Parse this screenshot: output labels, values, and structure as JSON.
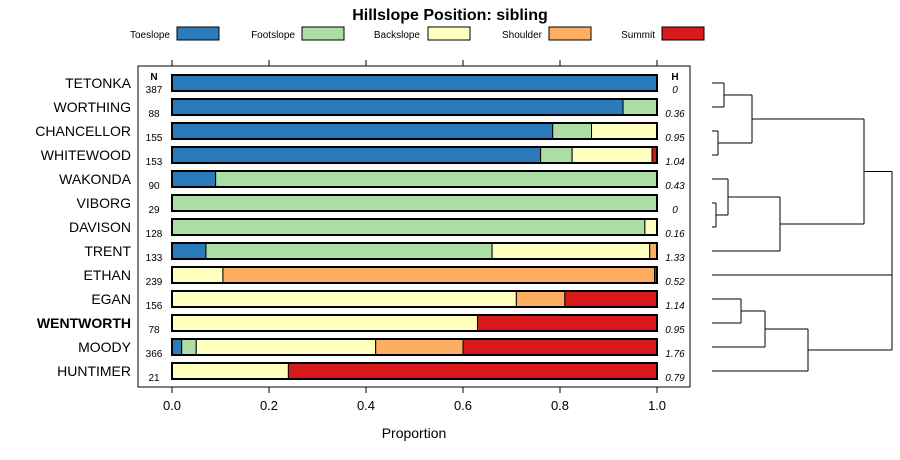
{
  "chart_data": {
    "type": "bar",
    "orientation": "horizontal",
    "stacked": true,
    "title": "Hillslope Position: sibling",
    "xlabel": "Proportion",
    "ylabel": "",
    "xlim": [
      0,
      1
    ],
    "xticks": [
      "0.0",
      "0.2",
      "0.4",
      "0.6",
      "0.8",
      "1.0"
    ],
    "n_header": "N",
    "h_header": "H",
    "series_names": [
      "Toeslope",
      "Footslope",
      "Backslope",
      "Shoulder",
      "Summit"
    ],
    "colors": [
      "#2b7bba",
      "#abdda4",
      "#ffffbf",
      "#fdae61",
      "#d7191c"
    ],
    "bold_category": "WENTWORTH",
    "categories": [
      "TETONKA",
      "WORTHING",
      "CHANCELLOR",
      "WHITEWOOD",
      "WAKONDA",
      "VIBORG",
      "DAVISON",
      "TRENT",
      "ETHAN",
      "EGAN",
      "WENTWORTH",
      "MOODY",
      "HUNTIMER"
    ],
    "n": [
      "387",
      "88",
      "155",
      "153",
      "90",
      "29",
      "128",
      "133",
      "239",
      "156",
      "78",
      "366",
      "21"
    ],
    "h": [
      "0",
      "0.36",
      "0.95",
      "1.04",
      "0.43",
      "0",
      "0.16",
      "1.33",
      "0.52",
      "1.14",
      "0.95",
      "1.76",
      "0.79"
    ],
    "values": [
      [
        1.0,
        0.0,
        0.0,
        0.0,
        0.0
      ],
      [
        0.93,
        0.07,
        0.0,
        0.0,
        0.0
      ],
      [
        0.785,
        0.08,
        0.135,
        0.0,
        0.0
      ],
      [
        0.76,
        0.065,
        0.165,
        0.0,
        0.01
      ],
      [
        0.09,
        0.91,
        0.0,
        0.0,
        0.0
      ],
      [
        0.0,
        1.0,
        0.0,
        0.0,
        0.0
      ],
      [
        0.0,
        0.975,
        0.025,
        0.0,
        0.0
      ],
      [
        0.07,
        0.59,
        0.325,
        0.015,
        0.0
      ],
      [
        0.0,
        0.0,
        0.105,
        0.89,
        0.005
      ],
      [
        0.0,
        0.0,
        0.71,
        0.1,
        0.19
      ],
      [
        0.0,
        0.0,
        0.63,
        0.0,
        0.37
      ],
      [
        0.02,
        0.03,
        0.37,
        0.18,
        0.4
      ],
      [
        0.0,
        0.0,
        0.24,
        0.0,
        0.76
      ]
    ],
    "dendrogram": {
      "description": "hierarchical clustering of rows (right side)",
      "groups": [
        [
          "TETONKA",
          "WORTHING",
          "CHANCELLOR",
          "WHITEWOOD"
        ],
        [
          "WAKONDA",
          "VIBORG",
          "DAVISON",
          "TRENT"
        ],
        [
          "ETHAN"
        ],
        [
          "EGAN",
          "WENTWORTH",
          "MOODY",
          "HUNTIMER"
        ]
      ]
    }
  }
}
